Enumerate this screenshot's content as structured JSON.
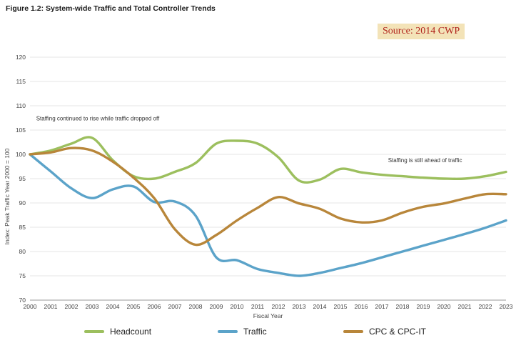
{
  "figure_title": "Figure 1.2: System-wide Traffic and Total Controller Trends",
  "source_label": "Source: 2014 CWP",
  "chart_data": {
    "type": "line",
    "title": "Figure 1.2: System-wide Traffic and Total Controller Trends",
    "xlabel": "Fiscal Year",
    "ylabel": "Index:  Peak Traffic Year 2000 = 100",
    "x": [
      2000,
      2001,
      2002,
      2003,
      2004,
      2005,
      2006,
      2007,
      2008,
      2009,
      2010,
      2011,
      2012,
      2013,
      2014,
      2015,
      2016,
      2017,
      2018,
      2019,
      2020,
      2021,
      2022,
      2023
    ],
    "x_tick_labels": [
      "2000",
      "2001",
      "2002",
      "2003",
      "2004",
      "2005",
      "2006",
      "2007",
      "2008",
      "2009",
      "2010",
      "2011",
      "2012",
      "2013",
      "2014",
      "2015",
      "2016",
      "2017",
      "2018",
      "2019",
      "2020",
      "2021",
      "2022",
      "2023"
    ],
    "ylim": [
      70,
      120
    ],
    "y_ticks": [
      70,
      75,
      80,
      85,
      90,
      95,
      100,
      105,
      110,
      115,
      120
    ],
    "y_tick_labels": [
      "70",
      "75",
      "80",
      "85",
      "90",
      "95",
      "100",
      "105",
      "110",
      "115",
      "120"
    ],
    "grid": true,
    "legend_position": "bottom",
    "series": [
      {
        "name": "Headcount",
        "color": "#9cbf5e",
        "values": [
          100,
          100.8,
          102.2,
          103.4,
          98.8,
          95.5,
          95.0,
          96.4,
          98.2,
          102.2,
          102.8,
          102.2,
          99.4,
          94.6,
          94.8,
          97.0,
          96.3,
          95.8,
          95.5,
          95.2,
          95.0,
          95.0,
          95.5,
          96.4
        ]
      },
      {
        "name": "Traffic",
        "color": "#5ba3c9",
        "values": [
          100,
          96.5,
          93.0,
          91.0,
          92.8,
          93.4,
          90.2,
          90.3,
          87.4,
          78.8,
          78.2,
          76.4,
          75.6,
          75.0,
          75.6,
          76.6,
          77.6,
          78.8,
          80.0,
          81.2,
          82.4,
          83.6,
          84.9,
          86.4
        ]
      },
      {
        "name": "CPC & CPC-IT",
        "color": "#b8863a",
        "values": [
          100,
          100.4,
          101.3,
          100.8,
          98.5,
          95.2,
          91.0,
          84.6,
          81.4,
          83.4,
          86.4,
          89.0,
          91.2,
          89.9,
          88.8,
          86.8,
          86.0,
          86.4,
          88.0,
          89.2,
          89.9,
          90.9,
          91.8,
          91.8
        ]
      }
    ],
    "annotations": [
      {
        "text": "Staffing continued to rise while traffic dropped off",
        "x": 2000.3,
        "y": 107.0
      },
      {
        "text": "Staffing is still ahead of traffic",
        "x": 2017.3,
        "y": 98.4
      }
    ]
  }
}
